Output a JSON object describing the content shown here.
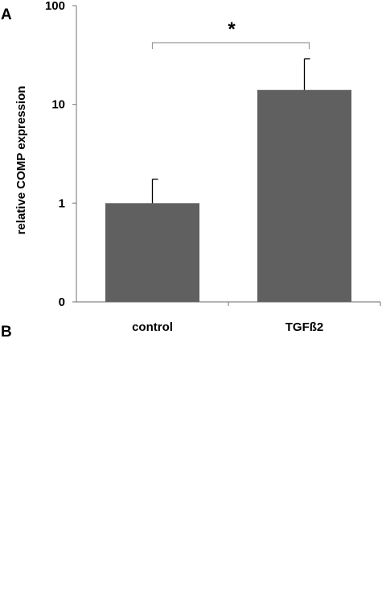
{
  "panel_a_letter": "A",
  "panel_b_letter": "B",
  "colors": {
    "bar": "#606060",
    "axis": "#888888",
    "errorbar": "#000000",
    "bracket": "#999999"
  },
  "chart_data": {
    "type": "bar",
    "yscale": "log",
    "ylabel": "relative COMP expression",
    "xlabel": "",
    "categories": [
      "control",
      "TGFß2"
    ],
    "values": [
      1,
      14
    ],
    "error_upper": [
      1.75,
      29
    ],
    "yticks": [
      {
        "value": 0.1,
        "label": "0"
      },
      {
        "value": 1,
        "label": "1"
      },
      {
        "value": 10,
        "label": "10"
      },
      {
        "value": 100,
        "label": "100"
      }
    ],
    "ylim": [
      0.1,
      100
    ],
    "grid": false,
    "legend": "none",
    "significance": {
      "label": "*",
      "between": [
        "control",
        "TGFß2"
      ]
    }
  }
}
